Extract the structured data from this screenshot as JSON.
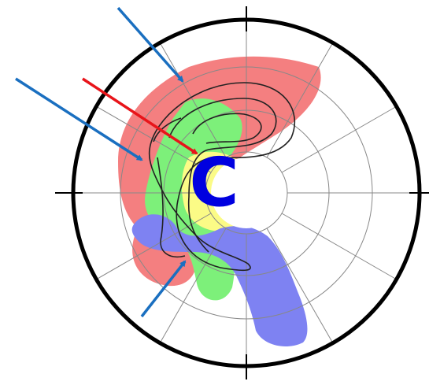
{
  "label": "C"
}
